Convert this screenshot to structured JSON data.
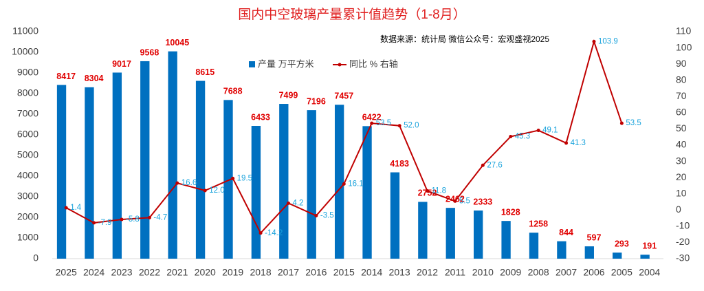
{
  "chart_data": {
    "type": "bar",
    "title": "国内中空玻璃产量累计值趋势（1-8月）",
    "annotation": "数据来源：统计局  微信公众号：宏观盛视2025",
    "categories": [
      "2025",
      "2024",
      "2023",
      "2022",
      "2021",
      "2020",
      "2019",
      "2018",
      "2017",
      "2016",
      "2015",
      "2014",
      "2013",
      "2012",
      "2011",
      "2010",
      "2009",
      "2008",
      "2007",
      "2006",
      "2005",
      "2004"
    ],
    "series": [
      {
        "name": "产量 万平方米",
        "type": "bar",
        "color": "#0070c0",
        "values": [
          8417,
          8304,
          9017,
          9568,
          10045,
          8615,
          7688,
          6433,
          7499,
          7196,
          7457,
          6422,
          4183,
          2752,
          2462,
          2333,
          1828,
          1258,
          844,
          597,
          293,
          191
        ]
      },
      {
        "name": "同比 % 右轴",
        "type": "line",
        "axis": "y2",
        "color": "#c00000",
        "values": [
          1.4,
          -7.9,
          -5.8,
          -4.7,
          16.6,
          12.0,
          19.5,
          -14.2,
          4.2,
          -3.5,
          16.1,
          53.5,
          52.0,
          11.8,
          5.5,
          27.6,
          45.3,
          49.1,
          41.3,
          103.9,
          53.5,
          null
        ],
        "value_labels": [
          "1.4",
          "-7.9",
          "-5.8",
          "-4.7",
          "16.6",
          "12.0",
          "19.5",
          "-14.2",
          "4.2",
          "-3.5",
          "16.1",
          "53.5",
          "52.0",
          "11.8",
          "5.5",
          "27.6",
          "45.3",
          "49.1",
          "41.3",
          "103.9",
          "53.5",
          null
        ]
      }
    ],
    "ylim": [
      0,
      11000
    ],
    "yticks": [
      0,
      1000,
      2000,
      3000,
      4000,
      5000,
      6000,
      7000,
      8000,
      9000,
      10000,
      11000
    ],
    "y2lim": [
      -30,
      110
    ],
    "y2ticks": [
      -30,
      -20,
      -10,
      0,
      10,
      20,
      30,
      40,
      50,
      60,
      70,
      80,
      90,
      100,
      110
    ],
    "grid": false
  }
}
